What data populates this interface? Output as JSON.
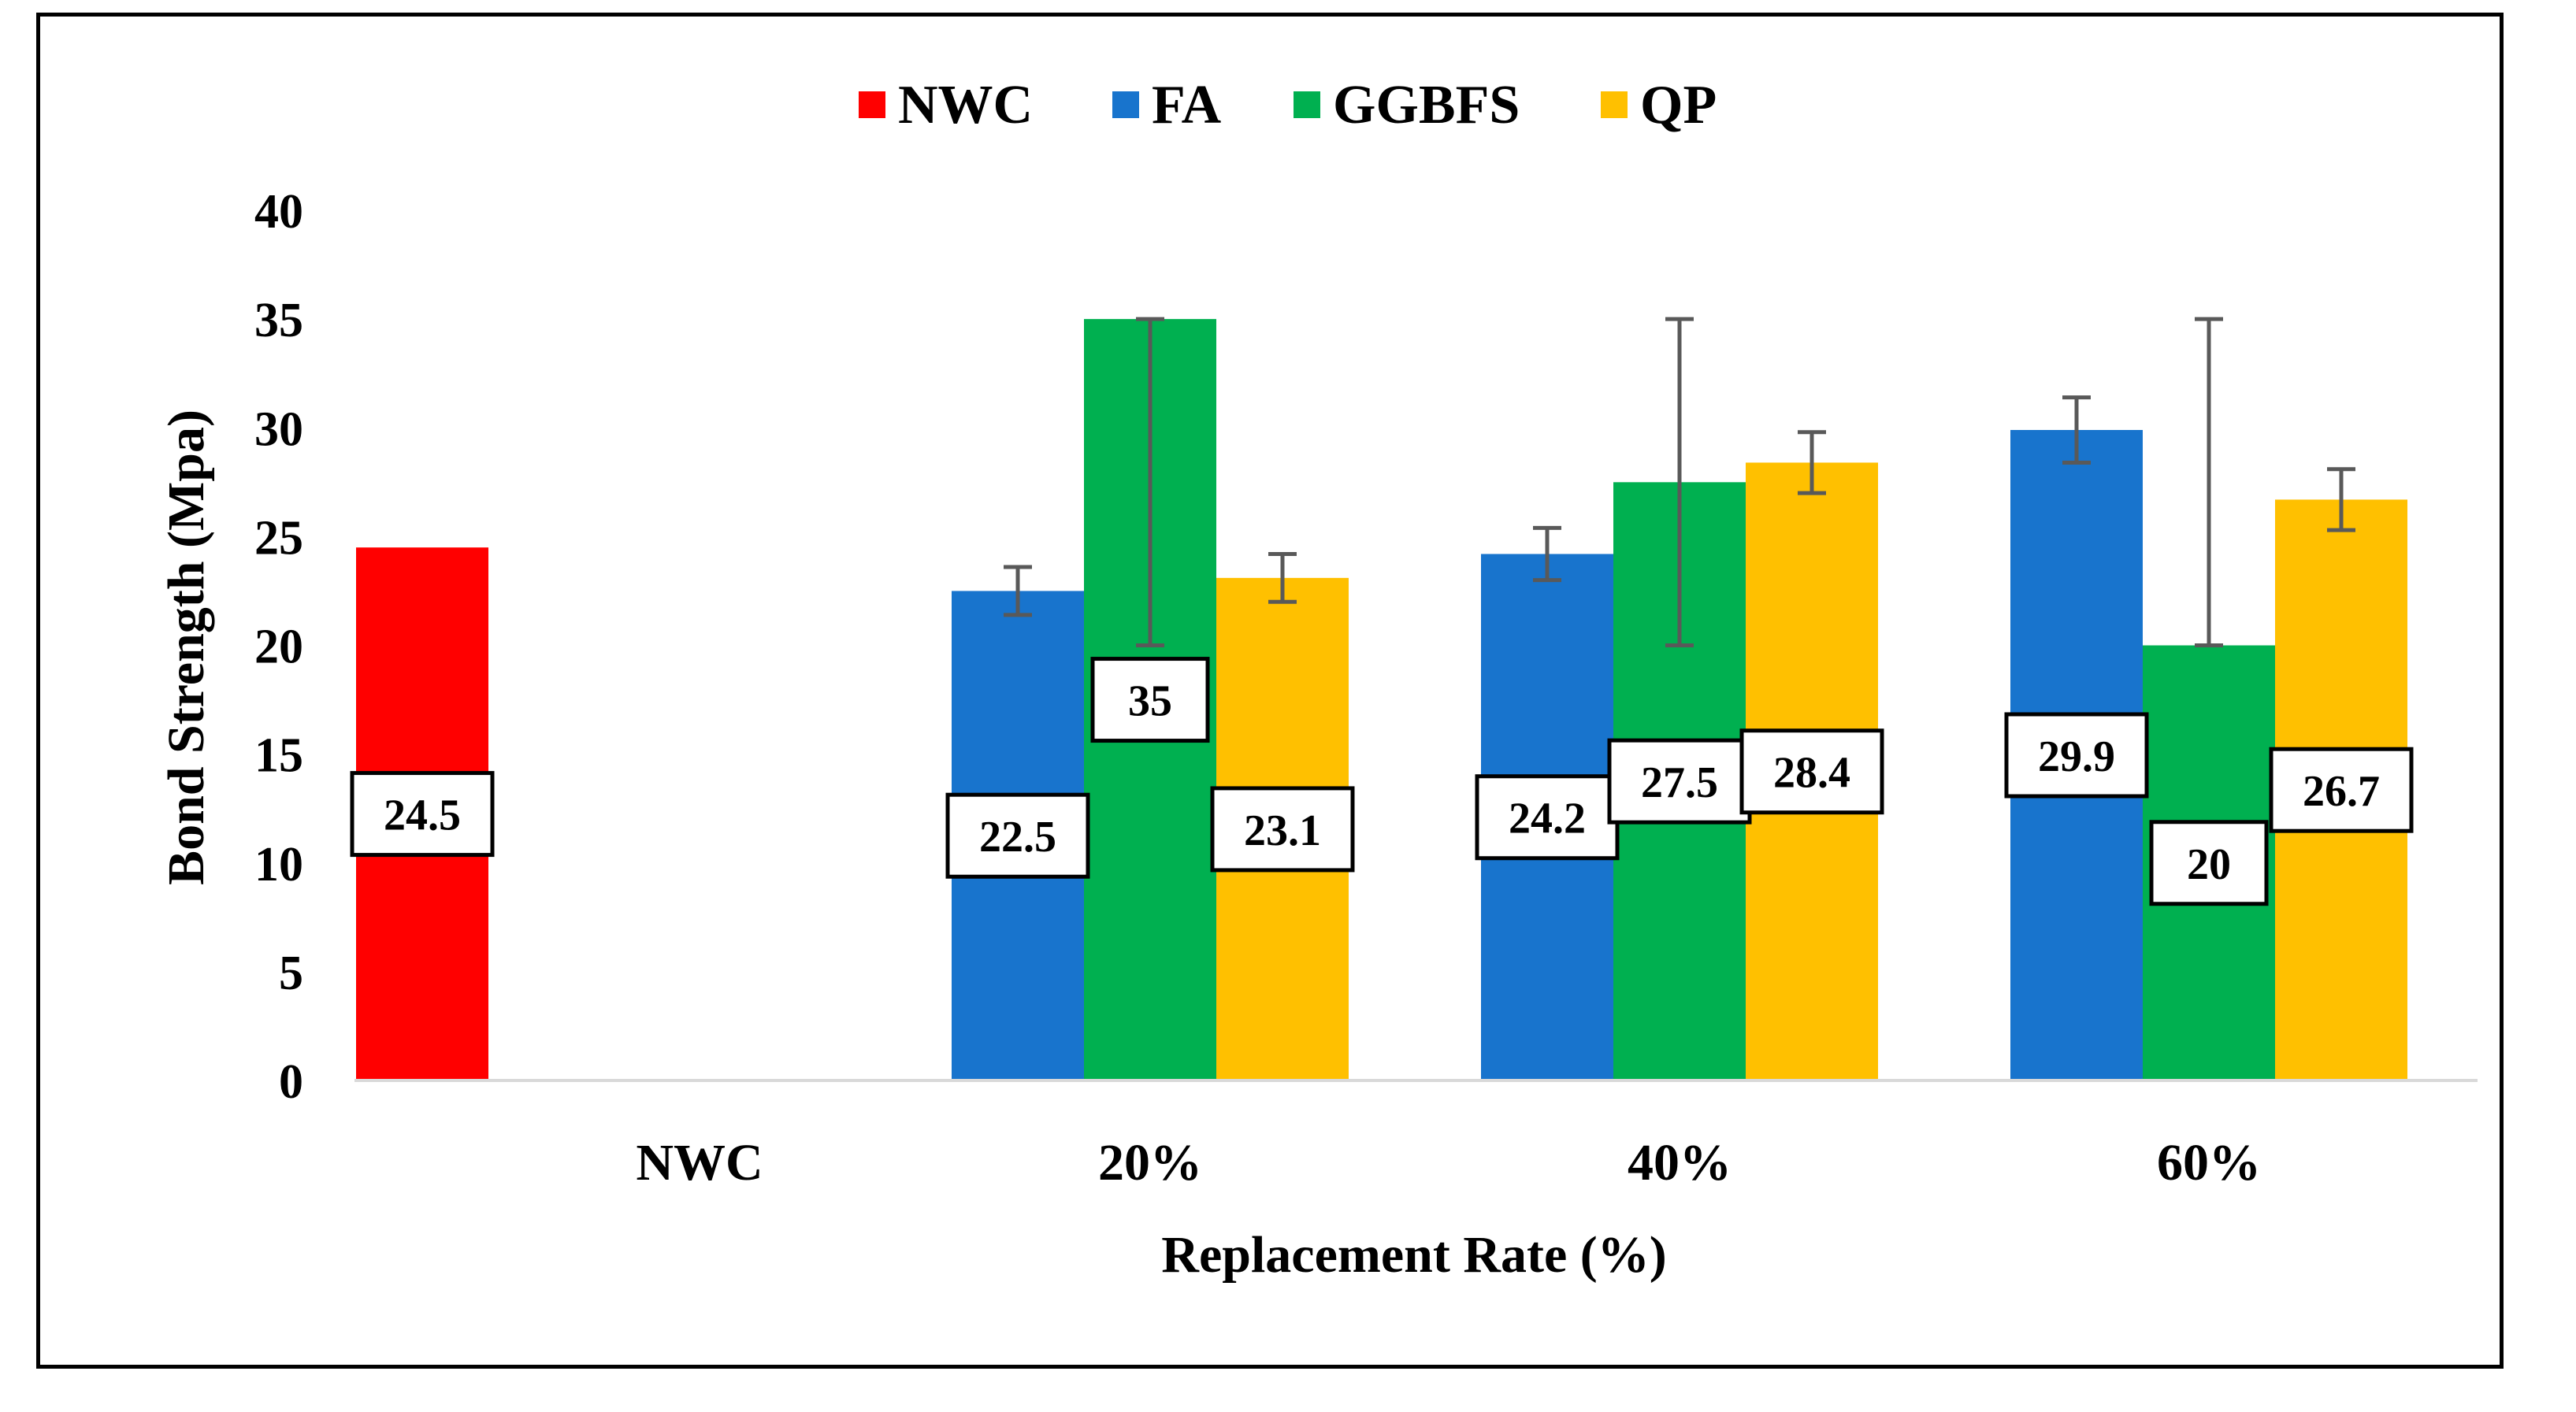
{
  "chart_data": {
    "type": "bar",
    "xlabel": "Replacement Rate (%)",
    "ylabel": "Bond Strength (Mpa)",
    "ylim": [
      0,
      40
    ],
    "ytick_step": 5,
    "categories": [
      "NWC",
      "20%",
      "40%",
      "60%"
    ],
    "grid": false,
    "legend_position": "top-center",
    "series": [
      {
        "name": "NWC",
        "color": "#FF0000",
        "values": [
          24.5,
          null,
          null,
          null
        ],
        "error_low": [
          null,
          null,
          null,
          null
        ],
        "error_high": [
          null,
          null,
          null,
          null
        ]
      },
      {
        "name": "FA",
        "color": "#1874CD",
        "values": [
          null,
          22.5,
          24.2,
          29.9
        ],
        "error_low": [
          null,
          21.4,
          23.0,
          28.4
        ],
        "error_high": [
          null,
          23.6,
          25.4,
          31.4
        ]
      },
      {
        "name": "GGBFS",
        "color": "#00B050",
        "values": [
          null,
          35,
          27.5,
          20
        ],
        "error_low": [
          null,
          20.0,
          20.0,
          20.0
        ],
        "error_high": [
          null,
          35.0,
          35.0,
          35.0
        ]
      },
      {
        "name": "QP",
        "color": "#FFC000",
        "values": [
          null,
          23.1,
          28.4,
          26.7
        ],
        "error_low": [
          null,
          22.0,
          27.0,
          25.3
        ],
        "error_high": [
          null,
          24.2,
          29.8,
          28.1
        ]
      }
    ],
    "data_labels": [
      {
        "text": "24.5",
        "series": 0,
        "category": 0,
        "value": 24.5
      },
      {
        "text": "22.5",
        "series": 1,
        "category": 1,
        "value": 22.5
      },
      {
        "text": "35",
        "series": 2,
        "category": 1,
        "value": 35
      },
      {
        "text": "23.1",
        "series": 3,
        "category": 1,
        "value": 23.1
      },
      {
        "text": "24.2",
        "series": 1,
        "category": 2,
        "value": 24.2
      },
      {
        "text": "27.5",
        "series": 2,
        "category": 2,
        "value": 27.5
      },
      {
        "text": "28.4",
        "series": 3,
        "category": 2,
        "value": 28.4
      },
      {
        "text": "29.9",
        "series": 1,
        "category": 3,
        "value": 29.9
      },
      {
        "text": "20",
        "series": 2,
        "category": 3,
        "value": 20
      },
      {
        "text": "26.7",
        "series": 3,
        "category": 3,
        "value": 26.7
      }
    ]
  }
}
